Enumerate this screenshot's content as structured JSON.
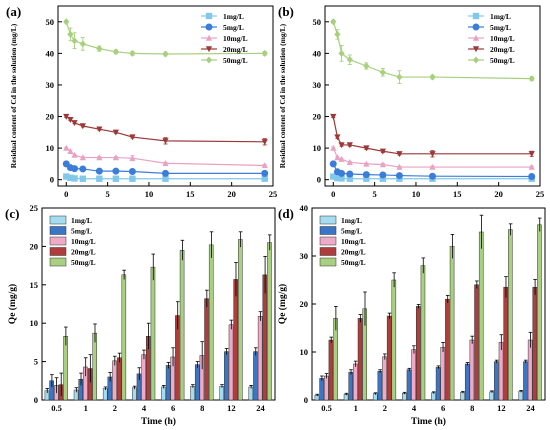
{
  "chart_data": [
    {
      "panel": "(a)",
      "type": "line",
      "xlabel": "",
      "ylabel": "Residual content of Cd in the solution  (mg/L)",
      "xlim": [
        -1,
        25
      ],
      "ylim": [
        -2,
        55
      ],
      "xticks": [
        0,
        5,
        10,
        15,
        20,
        25
      ],
      "yticks": [
        0,
        10,
        20,
        30,
        40,
        50
      ],
      "grid": false,
      "legend_position": "top-right",
      "x": [
        0,
        0.5,
        1,
        2,
        4,
        6,
        8,
        12,
        24
      ],
      "series": [
        {
          "name": "1mg/L",
          "marker": "square",
          "color": "#82c8ea",
          "values": [
            1.0,
            0.6,
            0.4,
            0.3,
            0.3,
            0.3,
            0.3,
            0.3,
            0.3
          ],
          "errors": [
            0.1,
            0.1,
            0.1,
            0.1,
            0.1,
            0.1,
            0.1,
            0.1,
            0.1
          ]
        },
        {
          "name": "5mg/L",
          "marker": "circle",
          "color": "#3b7dd8",
          "values": [
            5.0,
            3.8,
            3.5,
            3.4,
            2.7,
            2.7,
            2.6,
            2.0,
            2.0
          ],
          "errors": [
            0.2,
            0.2,
            0.2,
            0.2,
            0.2,
            0.2,
            0.2,
            0.2,
            0.2
          ]
        },
        {
          "name": "10mg/L",
          "marker": "triangle-up",
          "color": "#e8a2c4",
          "values": [
            10.0,
            9.0,
            7.8,
            7.0,
            7.0,
            7.0,
            6.8,
            5.2,
            4.5
          ],
          "errors": [
            0.3,
            0.3,
            0.3,
            0.3,
            0.3,
            0.3,
            0.8,
            0.3,
            0.3
          ]
        },
        {
          "name": "20mg/L",
          "marker": "triangle-down",
          "color": "#9c3838",
          "values": [
            20.0,
            19.0,
            18.0,
            17.0,
            16.0,
            15.0,
            13.5,
            12.3,
            12.0
          ],
          "errors": [
            0.3,
            0.3,
            0.3,
            0.3,
            0.3,
            0.3,
            0.3,
            1.0,
            1.0
          ]
        },
        {
          "name": "50mg/L",
          "marker": "diamond",
          "color": "#a6d07e",
          "values": [
            50.0,
            46.0,
            44.0,
            43.0,
            41.5,
            40.5,
            40.0,
            39.8,
            40.0
          ],
          "errors": [
            0.4,
            2.0,
            2.5,
            2.0,
            0.8,
            0.6,
            0.6,
            0.6,
            0.6
          ]
        }
      ]
    },
    {
      "panel": "(b)",
      "type": "line",
      "xlabel": "",
      "ylabel": "Residual content of Cd in the solution (mg/L)",
      "xlim": [
        -1,
        25
      ],
      "ylim": [
        -2,
        55
      ],
      "xticks": [
        0,
        5,
        10,
        15,
        20,
        25
      ],
      "yticks": [
        0,
        10,
        20,
        30,
        40,
        50
      ],
      "grid": false,
      "legend_position": "top-right",
      "x": [
        0,
        0.5,
        1,
        2,
        4,
        6,
        8,
        12,
        24
      ],
      "series": [
        {
          "name": "1mg/L",
          "marker": "square",
          "color": "#82c8ea",
          "values": [
            1.0,
            0.5,
            0.4,
            0.3,
            0.3,
            0.3,
            0.3,
            0.3,
            0.3
          ],
          "errors": [
            0.1,
            0.1,
            0.1,
            0.1,
            0.1,
            0.1,
            0.1,
            0.1,
            0.1
          ]
        },
        {
          "name": "5mg/L",
          "marker": "circle",
          "color": "#3b7dd8",
          "values": [
            5.0,
            2.5,
            2.0,
            1.8,
            1.6,
            1.5,
            1.3,
            1.1,
            1.0
          ],
          "errors": [
            0.2,
            0.2,
            0.2,
            0.2,
            0.2,
            0.2,
            0.2,
            0.2,
            0.2
          ]
        },
        {
          "name": "10mg/L",
          "marker": "triangle-up",
          "color": "#e8a2c4",
          "values": [
            10.0,
            7.0,
            6.5,
            5.5,
            5.0,
            4.8,
            4.0,
            4.0,
            4.0
          ],
          "errors": [
            0.3,
            0.3,
            0.3,
            0.3,
            0.3,
            0.3,
            0.3,
            0.3,
            0.3
          ]
        },
        {
          "name": "20mg/L",
          "marker": "triangle-down",
          "color": "#9c3838",
          "values": [
            20.0,
            13.5,
            11.0,
            11.0,
            10.0,
            9.0,
            8.2,
            8.2,
            8.2
          ],
          "errors": [
            0.3,
            0.4,
            0.4,
            0.4,
            0.4,
            0.4,
            0.4,
            1.0,
            0.8
          ]
        },
        {
          "name": "50mg/L",
          "marker": "diamond",
          "color": "#a6d07e",
          "values": [
            50.0,
            46.0,
            40.0,
            38.0,
            36.0,
            34.0,
            32.5,
            32.5,
            32.0
          ],
          "errors": [
            0.5,
            1.5,
            2.5,
            1.5,
            1.0,
            1.2,
            2.0,
            0.6,
            0.6
          ]
        }
      ]
    },
    {
      "panel": "(c)",
      "type": "bar",
      "xlabel": "Time (h)",
      "ylabel": "Qe (mg/g)",
      "ylim": [
        0,
        25
      ],
      "yticks": [
        0,
        5,
        10,
        15,
        20,
        25
      ],
      "grid": false,
      "legend_position": "top-left",
      "categories": [
        "0.5",
        "1",
        "2",
        "4",
        "6",
        "8",
        "12",
        "24"
      ],
      "series": [
        {
          "name": "1mg/L",
          "color": "#a6dcef",
          "values": [
            1.2,
            1.3,
            1.5,
            1.6,
            1.7,
            1.8,
            1.8,
            1.7
          ],
          "errors": [
            0.3,
            0.3,
            0.2,
            0.2,
            0.2,
            0.2,
            0.2,
            0.2
          ]
        },
        {
          "name": "5mg/L",
          "color": "#3b75c6",
          "values": [
            2.5,
            2.7,
            3.0,
            3.4,
            4.5,
            4.6,
            6.3,
            6.3
          ],
          "errors": [
            0.8,
            0.8,
            0.6,
            0.8,
            0.4,
            0.4,
            0.4,
            0.5
          ]
        },
        {
          "name": "10mg/L",
          "color": "#efaac8",
          "values": [
            1.9,
            4.3,
            5.1,
            5.9,
            5.6,
            5.8,
            9.8,
            10.9
          ],
          "errors": [
            1.0,
            1.2,
            0.6,
            0.6,
            1.2,
            1.8,
            0.6,
            0.6
          ]
        },
        {
          "name": "20mg/L",
          "color": "#b03c3c",
          "values": [
            2.0,
            4.1,
            5.5,
            8.3,
            11.0,
            13.2,
            15.7,
            16.3
          ],
          "errors": [
            1.5,
            1.8,
            0.6,
            1.7,
            1.8,
            1.1,
            2.2,
            2.4
          ]
        },
        {
          "name": "50mg/L",
          "color": "#a8d080",
          "values": [
            8.3,
            8.7,
            16.3,
            17.3,
            19.5,
            20.2,
            20.9,
            20.5
          ],
          "errors": [
            1.2,
            1.2,
            0.6,
            1.7,
            1.3,
            1.7,
            1.0,
            1.0
          ]
        }
      ]
    },
    {
      "panel": "(d)",
      "type": "bar",
      "xlabel": "Time (h)",
      "ylabel": "Qe (mg/g)",
      "ylim": [
        0,
        40
      ],
      "yticks": [
        0,
        10,
        20,
        30,
        40
      ],
      "grid": false,
      "legend_position": "top-left",
      "categories": [
        "0.5",
        "1",
        "2",
        "4",
        "6",
        "8",
        "12",
        "24"
      ],
      "series": [
        {
          "name": "1mg/L",
          "color": "#a6dcef",
          "values": [
            1.0,
            1.2,
            1.3,
            1.4,
            1.5,
            1.6,
            1.7,
            1.8
          ],
          "errors": [
            0.2,
            0.2,
            0.2,
            0.2,
            0.2,
            0.2,
            0.2,
            0.2
          ]
        },
        {
          "name": "5mg/L",
          "color": "#3b75c6",
          "values": [
            4.5,
            5.8,
            6.0,
            6.3,
            6.8,
            7.5,
            8.0,
            8.0
          ],
          "errors": [
            0.5,
            0.5,
            0.3,
            0.3,
            0.3,
            0.3,
            0.3,
            0.3
          ]
        },
        {
          "name": "10mg/L",
          "color": "#efaac8",
          "values": [
            5.0,
            7.5,
            9.0,
            10.5,
            11.0,
            12.5,
            12.0,
            12.5
          ],
          "errors": [
            0.5,
            0.6,
            0.6,
            0.8,
            1.0,
            0.8,
            1.6,
            1.6
          ]
        },
        {
          "name": "20mg/L",
          "color": "#b03c3c",
          "values": [
            12.5,
            17.0,
            17.5,
            19.5,
            21.0,
            24.0,
            23.5,
            23.5
          ],
          "errors": [
            0.6,
            0.8,
            0.6,
            0.4,
            0.8,
            0.8,
            2.2,
            1.6
          ]
        },
        {
          "name": "50mg/L",
          "color": "#a8d080",
          "values": [
            17.0,
            19.0,
            25.0,
            28.0,
            32.0,
            35.0,
            35.5,
            36.5
          ],
          "errors": [
            2.5,
            3.5,
            1.5,
            1.6,
            2.5,
            3.5,
            1.2,
            1.4
          ]
        }
      ]
    }
  ]
}
